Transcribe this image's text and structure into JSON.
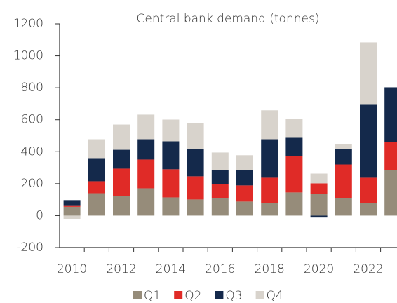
{
  "chart_data": {
    "type": "bar",
    "stacked": true,
    "title": "Central bank demand (tonnes)",
    "categories": [
      "2010",
      null,
      "2012",
      null,
      "2014",
      null,
      "2016",
      null,
      "2018",
      null,
      "2020",
      null,
      "2022",
      null
    ],
    "series": [
      {
        "name": "Q1",
        "color": "#968c7a",
        "values": [
          55,
          140,
          123,
          171,
          114,
          101,
          110,
          88,
          79,
          145,
          136,
          110,
          79,
          285
        ]
      },
      {
        "name": "Q2",
        "color": "#e02b27",
        "values": [
          10,
          75,
          171,
          180,
          176,
          145,
          88,
          101,
          158,
          228,
          66,
          210,
          158,
          176
        ]
      },
      {
        "name": "Q3",
        "color": "#14294b",
        "values": [
          32,
          145,
          118,
          127,
          175,
          171,
          87,
          96,
          241,
          114,
          -12,
          97,
          461,
          342
        ]
      },
      {
        "name": "Q4",
        "color": "#d8d3cc",
        "values": [
          -20,
          118,
          158,
          154,
          136,
          163,
          110,
          93,
          181,
          119,
          61,
          31,
          386,
          null
        ]
      }
    ],
    "ylim": [
      -200,
      1200
    ],
    "yticks": [
      -200,
      0,
      200,
      400,
      600,
      800,
      1000,
      1200
    ]
  }
}
